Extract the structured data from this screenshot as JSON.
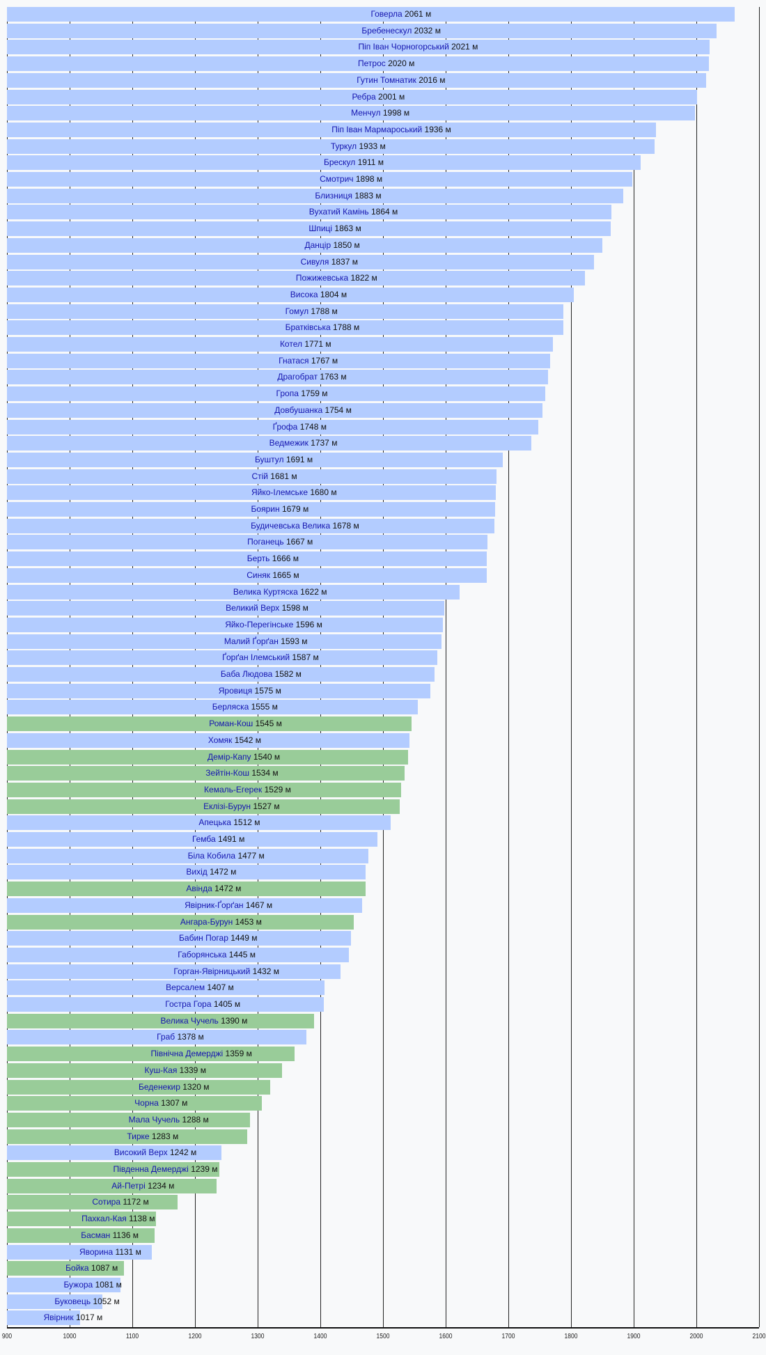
{
  "chart_data": {
    "type": "bar",
    "orientation": "horizontal",
    "title": "",
    "xlabel": "",
    "ylabel": "",
    "xlim": [
      900,
      2100
    ],
    "xticks": [
      900,
      1000,
      1100,
      1200,
      1300,
      1400,
      1500,
      1600,
      1700,
      1800,
      1900,
      2000,
      2100
    ],
    "unit": "м",
    "grid": true,
    "colors": {
      "carpathians": "#b3ccff",
      "crimea": "#99cc99"
    },
    "bars": [
      {
        "name": "Говерла",
        "value": 2061,
        "group": "carpathians"
      },
      {
        "name": "Бребенескул",
        "value": 2032,
        "group": "carpathians"
      },
      {
        "name": "Піп Іван Чорногорський",
        "value": 2021,
        "group": "carpathians"
      },
      {
        "name": "Петрос ",
        "value": 2020,
        "group": "carpathians"
      },
      {
        "name": "Гутин Томнатик",
        "value": 2016,
        "group": "carpathians"
      },
      {
        "name": "Ребра",
        "value": 2001,
        "group": "carpathians"
      },
      {
        "name": "Менчул",
        "value": 1998,
        "group": "carpathians"
      },
      {
        "name": "Піп Іван Мармароський",
        "value": 1936,
        "group": "carpathians"
      },
      {
        "name": "Туркул",
        "value": 1933,
        "group": "carpathians"
      },
      {
        "name": "Брескул",
        "value": 1911,
        "group": "carpathians"
      },
      {
        "name": "Смотрич",
        "value": 1898,
        "group": "carpathians"
      },
      {
        "name": "Близниця",
        "value": 1883,
        "group": "carpathians"
      },
      {
        "name": "Вухатий Камінь",
        "value": 1864,
        "group": "carpathians"
      },
      {
        "name": "Шпиці",
        "value": 1863,
        "group": "carpathians"
      },
      {
        "name": "Данцір",
        "value": 1850,
        "group": "carpathians"
      },
      {
        "name": "Сивуля",
        "value": 1837,
        "group": "carpathians"
      },
      {
        "name": "Пожижевська",
        "value": 1822,
        "group": "carpathians"
      },
      {
        "name": "Висока",
        "value": 1804,
        "group": "carpathians"
      },
      {
        "name": "Гомул",
        "value": 1788,
        "group": "carpathians"
      },
      {
        "name": "Братківська",
        "value": 1788,
        "group": "carpathians"
      },
      {
        "name": "Котел",
        "value": 1771,
        "group": "carpathians"
      },
      {
        "name": "Гнатася",
        "value": 1767,
        "group": "carpathians"
      },
      {
        "name": "Драгобрат",
        "value": 1763,
        "group": "carpathians"
      },
      {
        "name": "Гропа",
        "value": 1759,
        "group": "carpathians"
      },
      {
        "name": "Довбушанка",
        "value": 1754,
        "group": "carpathians"
      },
      {
        "name": "Ґрофа",
        "value": 1748,
        "group": "carpathians"
      },
      {
        "name": "Ведмежик",
        "value": 1737,
        "group": "carpathians"
      },
      {
        "name": "Буштул",
        "value": 1691,
        "group": "carpathians"
      },
      {
        "name": "Стій",
        "value": 1681,
        "group": "carpathians"
      },
      {
        "name": "Яйко-Ілемське",
        "value": 1680,
        "group": "carpathians"
      },
      {
        "name": "Боярин",
        "value": 1679,
        "group": "carpathians"
      },
      {
        "name": "Будичевська Велика",
        "value": 1678,
        "group": "carpathians"
      },
      {
        "name": "Поганець",
        "value": 1667,
        "group": "carpathians"
      },
      {
        "name": "Берть",
        "value": 1666,
        "group": "carpathians"
      },
      {
        "name": "Синяк",
        "value": 1665,
        "group": "carpathians"
      },
      {
        "name": "Велика Куртяска",
        "value": 1622,
        "group": "carpathians"
      },
      {
        "name": "Великий Верх",
        "value": 1598,
        "group": "carpathians"
      },
      {
        "name": "Яйко-Перегінське",
        "value": 1596,
        "group": "carpathians"
      },
      {
        "name": "Малий Ґорґан",
        "value": 1593,
        "group": "carpathians"
      },
      {
        "name": "Ґорґан Ілемський",
        "value": 1587,
        "group": "carpathians"
      },
      {
        "name": "Баба Людова",
        "value": 1582,
        "group": "carpathians"
      },
      {
        "name": "Яровиця",
        "value": 1575,
        "group": "carpathians"
      },
      {
        "name": "Берляска",
        "value": 1555,
        "group": "carpathians"
      },
      {
        "name": "Роман-Кош",
        "value": 1545,
        "group": "crimea"
      },
      {
        "name": "Хомяк",
        "value": 1542,
        "group": "carpathians"
      },
      {
        "name": "Демір-Капу",
        "value": 1540,
        "group": "crimea"
      },
      {
        "name": "Зейтін-Кош",
        "value": 1534,
        "group": "crimea"
      },
      {
        "name": "Кемаль-Егерек",
        "value": 1529,
        "group": "crimea"
      },
      {
        "name": "Еклізі-Бурун",
        "value": 1527,
        "group": "crimea"
      },
      {
        "name": "Апецька",
        "value": 1512,
        "group": "carpathians"
      },
      {
        "name": "Гемба",
        "value": 1491,
        "group": "carpathians"
      },
      {
        "name": "Біла Кобила",
        "value": 1477,
        "group": "carpathians"
      },
      {
        "name": "Вихід",
        "value": 1472,
        "group": "carpathians"
      },
      {
        "name": "Авінда",
        "value": 1472,
        "group": "crimea"
      },
      {
        "name": "Явірник-Ґорґан",
        "value": 1467,
        "group": "carpathians"
      },
      {
        "name": "Ангара-Бурун",
        "value": 1453,
        "group": "crimea"
      },
      {
        "name": "Бабин Погар",
        "value": 1449,
        "group": "carpathians"
      },
      {
        "name": "Габорянська",
        "value": 1445,
        "group": "carpathians"
      },
      {
        "name": "Горган-Явірницький",
        "value": 1432,
        "group": "carpathians"
      },
      {
        "name": "Версалем",
        "value": 1407,
        "group": "carpathians"
      },
      {
        "name": "Гостра Гора",
        "value": 1405,
        "group": "carpathians"
      },
      {
        "name": "Велика Чучель",
        "value": 1390,
        "group": "crimea"
      },
      {
        "name": "Граб",
        "value": 1378,
        "group": "carpathians"
      },
      {
        "name": "Північна Демерджі",
        "value": 1359,
        "group": "crimea"
      },
      {
        "name": "Куш-Кая",
        "value": 1339,
        "group": "crimea"
      },
      {
        "name": "Беденекир",
        "value": 1320,
        "group": "crimea"
      },
      {
        "name": "Чорна",
        "value": 1307,
        "group": "crimea"
      },
      {
        "name": "Мала Чучель",
        "value": 1288,
        "group": "crimea"
      },
      {
        "name": "Тирке",
        "value": 1283,
        "group": "crimea"
      },
      {
        "name": "Високий Верх",
        "value": 1242,
        "group": "carpathians"
      },
      {
        "name": "Південна Демерджі",
        "value": 1239,
        "group": "crimea"
      },
      {
        "name": "Ай-Петрі",
        "value": 1234,
        "group": "crimea"
      },
      {
        "name": "Сотира",
        "value": 1172,
        "group": "crimea"
      },
      {
        "name": "Пахкал-Кая",
        "value": 1138,
        "group": "crimea"
      },
      {
        "name": "Басман",
        "value": 1136,
        "group": "crimea"
      },
      {
        "name": "Яворина",
        "value": 1131,
        "group": "carpathians"
      },
      {
        "name": "Бойка",
        "value": 1087,
        "group": "crimea"
      },
      {
        "name": "Бужора",
        "value": 1081,
        "group": "carpathians"
      },
      {
        "name": "Буковець",
        "value": 1052,
        "group": "carpathians"
      },
      {
        "name": "Явірник",
        "value": 1017,
        "group": "carpathians"
      }
    ]
  }
}
